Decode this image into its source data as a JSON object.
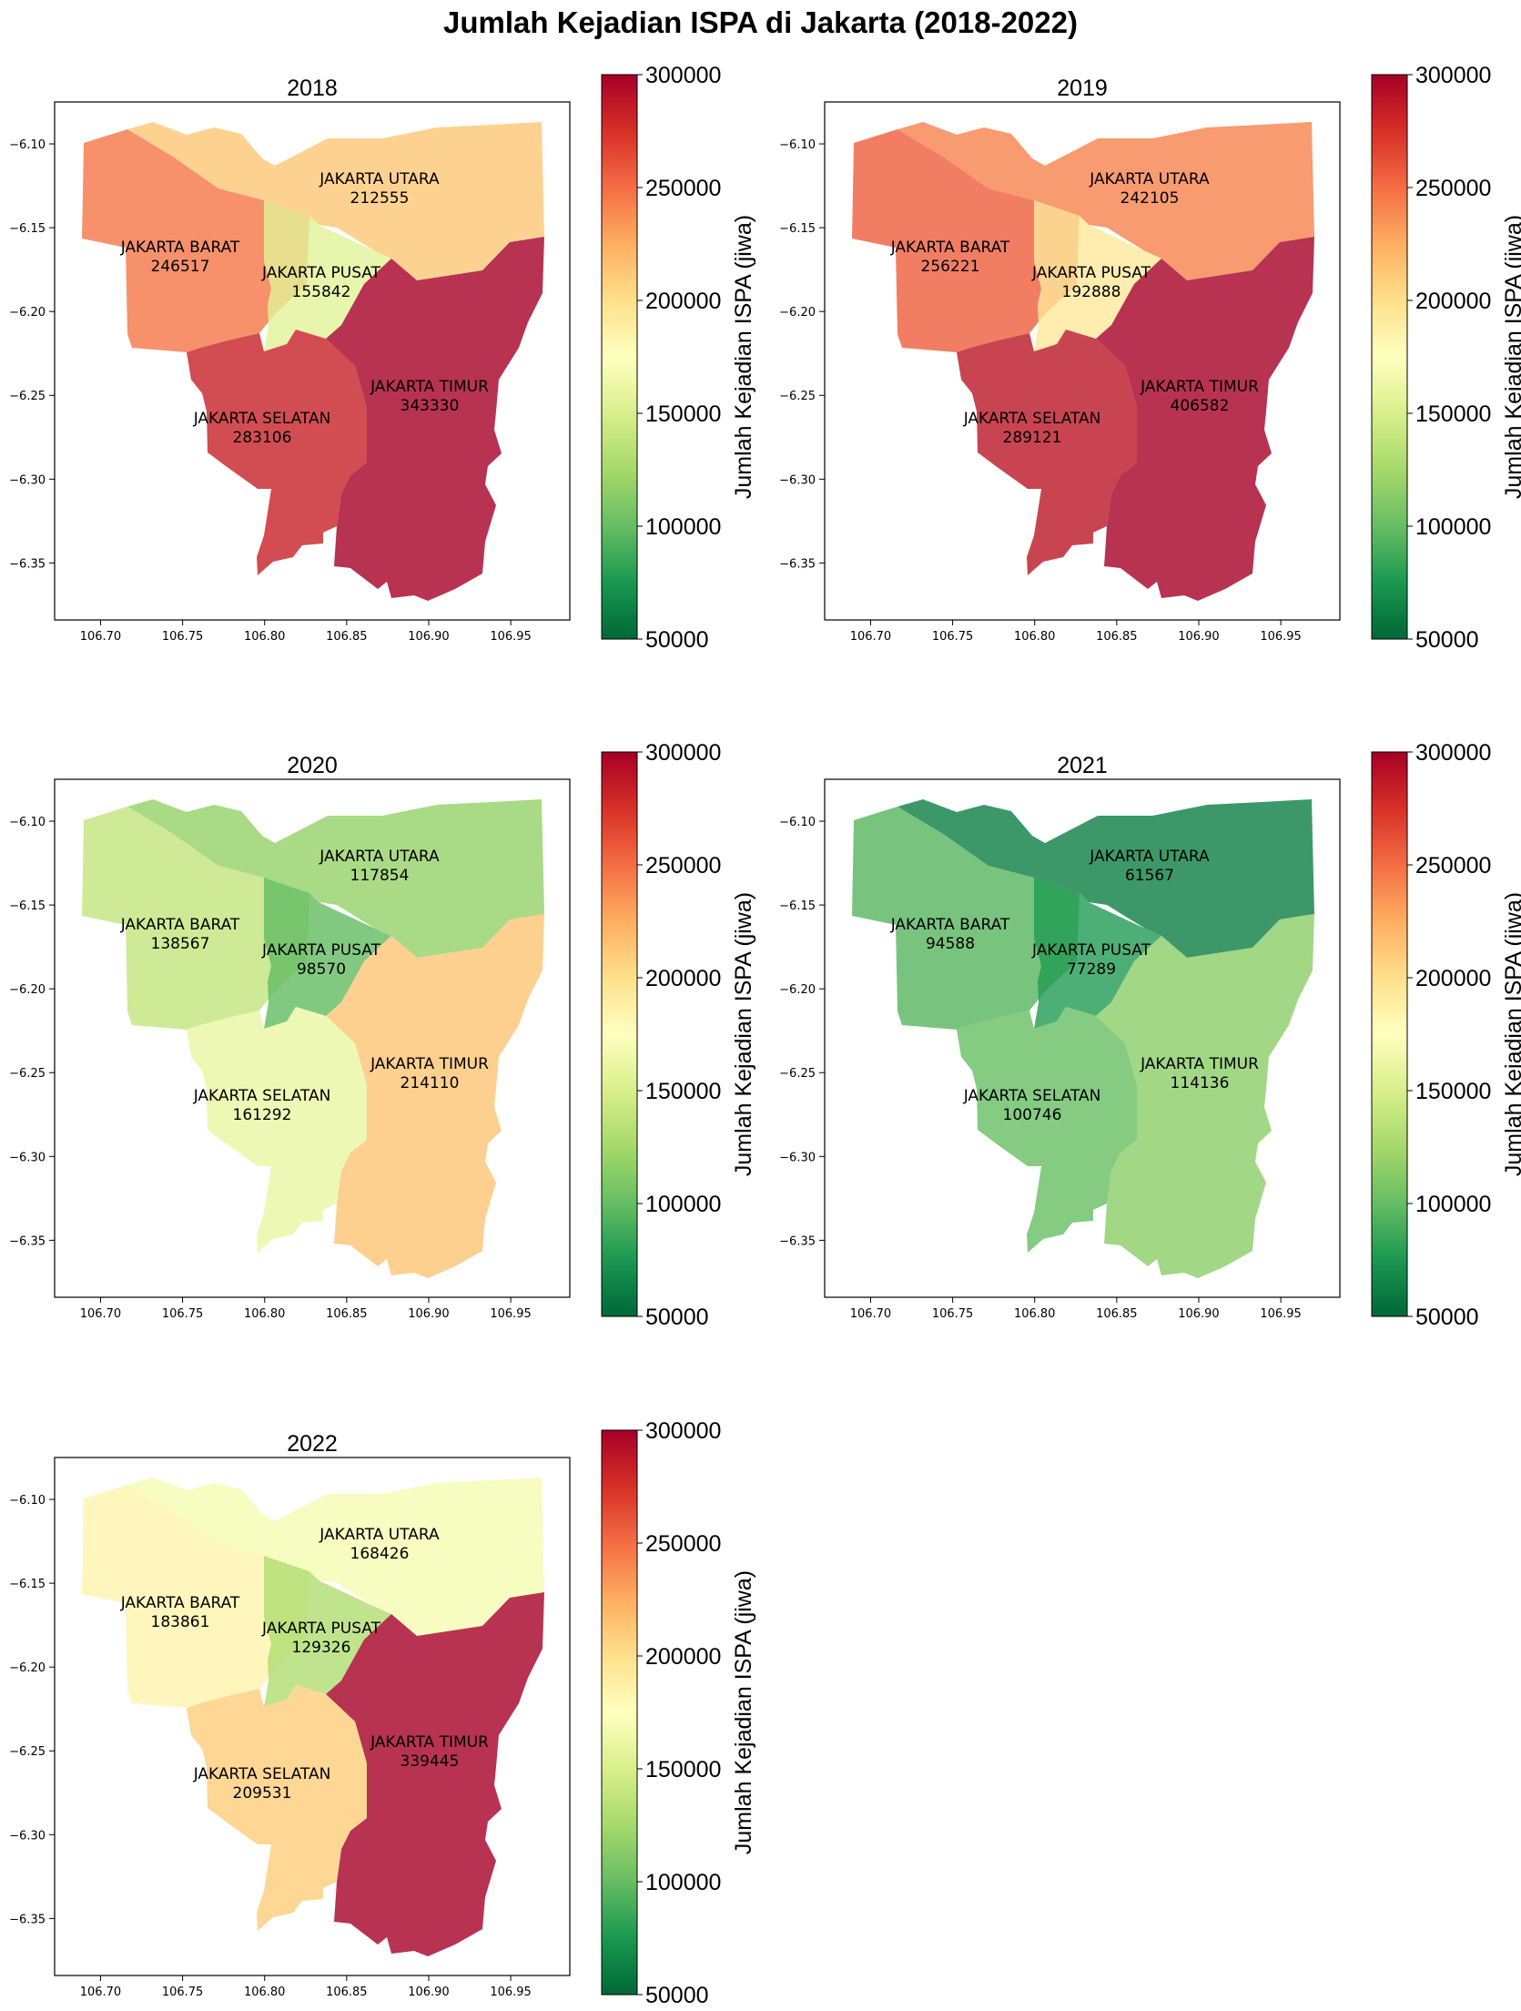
{
  "title": "Jumlah Kejadian ISPA di Jakarta (2018-2022)",
  "colorbar": {
    "label": "Jumlah Kejadian ISPA (jiwa)",
    "min": 50000,
    "max": 300000,
    "ticks": [
      50000,
      100000,
      150000,
      200000,
      250000,
      300000
    ],
    "colormap": "RdYlGn_r",
    "stops": [
      "#006837",
      "#1a9850",
      "#66bd63",
      "#a6d96a",
      "#d9ef8b",
      "#ffffbf",
      "#fee08b",
      "#fdae61",
      "#f46d43",
      "#d73027",
      "#a50026"
    ]
  },
  "axes": {
    "xlim": [
      106.672,
      106.986
    ],
    "ylim": [
      -6.384,
      -6.075
    ],
    "xticks": [
      "106.70",
      "106.75",
      "106.80",
      "106.85",
      "106.90",
      "106.95"
    ],
    "yticks": [
      "-6.10",
      "-6.15",
      "-6.20",
      "-6.25",
      "-6.30",
      "-6.35"
    ]
  },
  "chart_data": [
    {
      "type": "choropleth",
      "title": "2018",
      "regions": [
        {
          "name": "JAKARTA BARAT",
          "value": 246517
        },
        {
          "name": "JAKARTA UTARA",
          "value": 212555
        },
        {
          "name": "JAKARTA PUSAT",
          "value": 155842
        },
        {
          "name": "JAKARTA TIMUR",
          "value": 343330
        },
        {
          "name": "JAKARTA SELATAN",
          "value": 283106
        }
      ]
    },
    {
      "type": "choropleth",
      "title": "2019",
      "regions": [
        {
          "name": "JAKARTA BARAT",
          "value": 256221
        },
        {
          "name": "JAKARTA UTARA",
          "value": 242105
        },
        {
          "name": "JAKARTA PUSAT",
          "value": 192888
        },
        {
          "name": "JAKARTA TIMUR",
          "value": 406582
        },
        {
          "name": "JAKARTA SELATAN",
          "value": 289121
        }
      ]
    },
    {
      "type": "choropleth",
      "title": "2020",
      "regions": [
        {
          "name": "JAKARTA BARAT",
          "value": 138567
        },
        {
          "name": "JAKARTA UTARA",
          "value": 117854
        },
        {
          "name": "JAKARTA PUSAT",
          "value": 98570
        },
        {
          "name": "JAKARTA TIMUR",
          "value": 214110
        },
        {
          "name": "JAKARTA SELATAN",
          "value": 161292
        }
      ]
    },
    {
      "type": "choropleth",
      "title": "2021",
      "regions": [
        {
          "name": "JAKARTA BARAT",
          "value": 94588
        },
        {
          "name": "JAKARTA UTARA",
          "value": 61567
        },
        {
          "name": "JAKARTA PUSAT",
          "value": 77289
        },
        {
          "name": "JAKARTA TIMUR",
          "value": 114136
        },
        {
          "name": "JAKARTA SELATAN",
          "value": 100746
        }
      ]
    },
    {
      "type": "choropleth",
      "title": "2022",
      "regions": [
        {
          "name": "JAKARTA BARAT",
          "value": 183861
        },
        {
          "name": "JAKARTA UTARA",
          "value": 168426
        },
        {
          "name": "JAKARTA PUSAT",
          "value": 129326
        },
        {
          "name": "JAKARTA TIMUR",
          "value": 339445
        },
        {
          "name": "JAKARTA SELATAN",
          "value": 209531
        }
      ]
    }
  ]
}
